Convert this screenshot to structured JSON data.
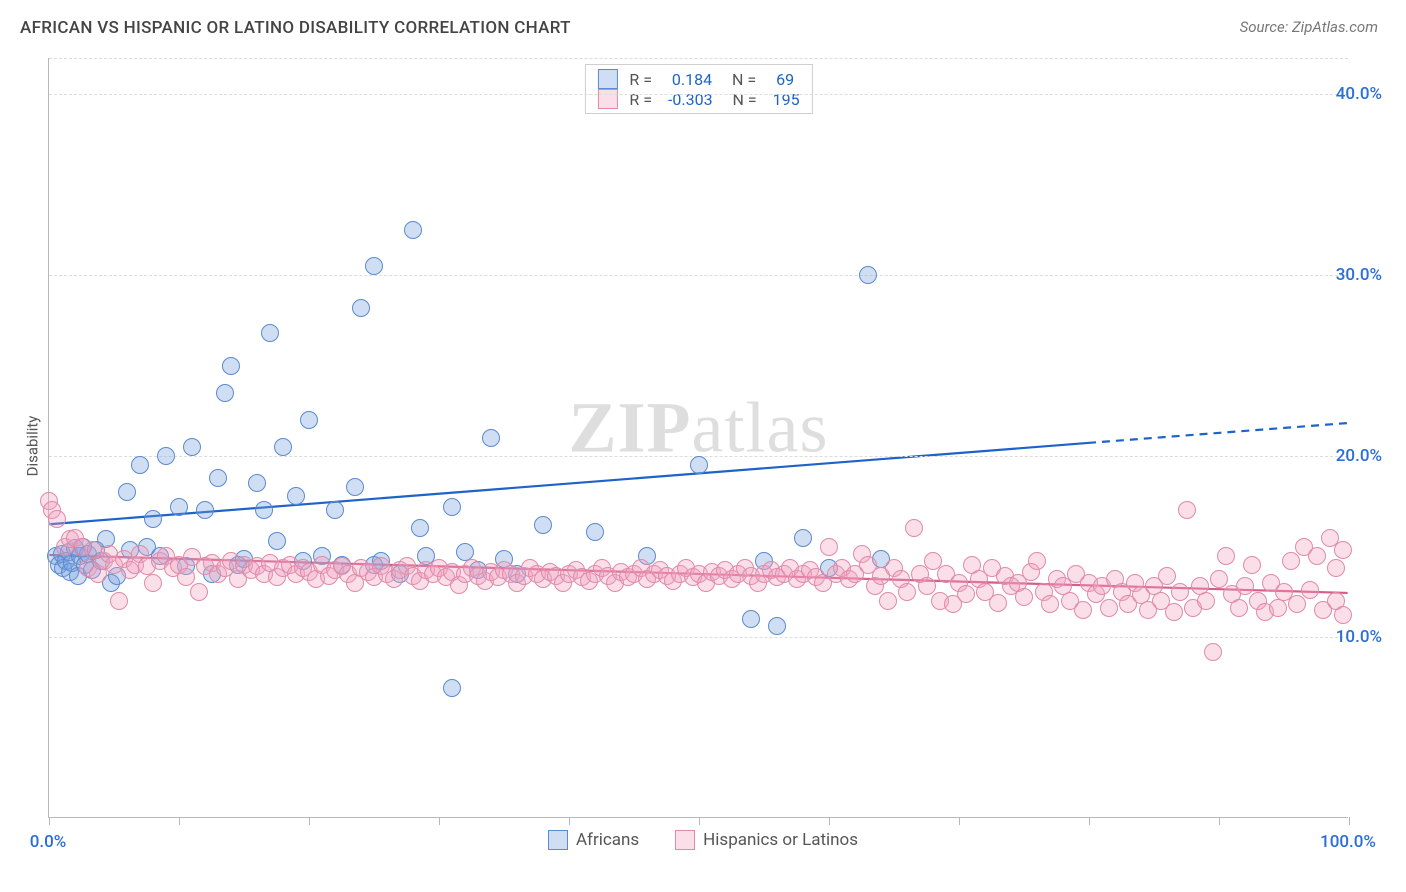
{
  "title": "AFRICAN VS HISPANIC OR LATINO DISABILITY CORRELATION CHART",
  "source": "Source: ZipAtlas.com",
  "ylabel": "Disability",
  "watermark": {
    "bold": "ZIP",
    "rest": "atlas"
  },
  "colors": {
    "title": "#444444",
    "source": "#777777",
    "tick_blue": "#2a6fd6",
    "grid": "#dcdcdc",
    "axis": "#b8b8b8",
    "series_a_fill": "rgba(120,160,220,0.35)",
    "series_a_stroke": "#5a8bd0",
    "series_a_line": "#1e63c8",
    "series_b_fill": "rgba(240,160,190,0.35)",
    "series_b_stroke": "#e08ba8",
    "series_b_line": "#d65c8a",
    "legend_text": "#555555",
    "stat_blue": "#1e63c8"
  },
  "chart": {
    "type": "scatter",
    "xlim": [
      0,
      100
    ],
    "ylim": [
      0,
      42
    ],
    "x_ticks_minor": [
      0,
      10,
      20,
      30,
      40,
      50,
      60,
      70,
      80,
      90,
      100
    ],
    "x_labels": [
      {
        "x": 0,
        "text": "0.0%"
      },
      {
        "x": 100,
        "text": "100.0%"
      }
    ],
    "y_gridlines": [
      10,
      20,
      30,
      40
    ],
    "y_labels": [
      {
        "y": 10,
        "text": "10.0%"
      },
      {
        "y": 20,
        "text": "20.0%"
      },
      {
        "y": 30,
        "text": "30.0%"
      },
      {
        "y": 40,
        "text": "40.0%"
      }
    ],
    "marker_radius": 9,
    "marker_border_width": 1.3,
    "line_width": 2.2
  },
  "legend_top": [
    {
      "swatch_fill": "rgba(120,160,220,0.35)",
      "swatch_stroke": "#5a8bd0",
      "r_label": "R =",
      "r_val": "0.184",
      "n_label": "N =",
      "n_val": "69"
    },
    {
      "swatch_fill": "rgba(240,160,190,0.35)",
      "swatch_stroke": "#e08ba8",
      "r_label": "R =",
      "r_val": "-0.303",
      "n_label": "N =",
      "n_val": "195"
    }
  ],
  "legend_bottom": [
    {
      "swatch_fill": "rgba(120,160,220,0.35)",
      "swatch_stroke": "#5a8bd0",
      "label": "Africans"
    },
    {
      "swatch_fill": "rgba(240,160,190,0.35)",
      "swatch_stroke": "#e08ba8",
      "label": "Hispanics or Latinos"
    }
  ],
  "series": [
    {
      "name": "Africans",
      "fill": "rgba(120,160,220,0.35)",
      "stroke": "#5a8bd0",
      "regression": {
        "x1": 0,
        "y1": 16.2,
        "x2_solid": 80,
        "y2_solid": 20.7,
        "x2": 100,
        "y2": 21.8,
        "color": "#1e63c8",
        "dash_from": 80
      },
      "points": [
        [
          0.5,
          14.5
        ],
        [
          0.8,
          14.0
        ],
        [
          1.0,
          14.6
        ],
        [
          1.1,
          13.8
        ],
        [
          1.3,
          14.2
        ],
        [
          1.5,
          14.7
        ],
        [
          1.6,
          13.6
        ],
        [
          1.8,
          14.1
        ],
        [
          2.0,
          14.9
        ],
        [
          2.2,
          13.4
        ],
        [
          2.4,
          14.5
        ],
        [
          2.6,
          15.0
        ],
        [
          2.8,
          14.0
        ],
        [
          3.0,
          14.6
        ],
        [
          3.3,
          13.7
        ],
        [
          3.6,
          14.8
        ],
        [
          4.0,
          14.2
        ],
        [
          4.4,
          15.4
        ],
        [
          4.8,
          13.0
        ],
        [
          5.2,
          13.4
        ],
        [
          6.0,
          18.0
        ],
        [
          6.2,
          14.8
        ],
        [
          7.0,
          19.5
        ],
        [
          7.5,
          15.0
        ],
        [
          8.0,
          16.5
        ],
        [
          8.5,
          14.5
        ],
        [
          9.0,
          20.0
        ],
        [
          10.0,
          17.2
        ],
        [
          10.5,
          13.9
        ],
        [
          11.0,
          20.5
        ],
        [
          12.0,
          17.0
        ],
        [
          12.5,
          13.5
        ],
        [
          13.0,
          18.8
        ],
        [
          13.5,
          23.5
        ],
        [
          14.0,
          25.0
        ],
        [
          14.5,
          14.0
        ],
        [
          15.0,
          14.3
        ],
        [
          16.0,
          18.5
        ],
        [
          16.5,
          17.0
        ],
        [
          17.0,
          26.8
        ],
        [
          17.5,
          15.3
        ],
        [
          18.0,
          20.5
        ],
        [
          19.0,
          17.8
        ],
        [
          19.5,
          14.2
        ],
        [
          20.0,
          22.0
        ],
        [
          21.0,
          14.5
        ],
        [
          22.0,
          17.0
        ],
        [
          22.5,
          14.0
        ],
        [
          23.5,
          18.3
        ],
        [
          24.0,
          28.2
        ],
        [
          25.0,
          14.0
        ],
        [
          25.0,
          30.5
        ],
        [
          25.5,
          14.2
        ],
        [
          27.0,
          13.5
        ],
        [
          28.0,
          32.5
        ],
        [
          28.5,
          16.0
        ],
        [
          29.0,
          14.5
        ],
        [
          31.0,
          7.2
        ],
        [
          31.0,
          17.2
        ],
        [
          32.0,
          14.7
        ],
        [
          33.0,
          13.7
        ],
        [
          34.0,
          21.0
        ],
        [
          35.0,
          14.3
        ],
        [
          36.0,
          13.5
        ],
        [
          38.0,
          16.2
        ],
        [
          42.0,
          15.8
        ],
        [
          46.0,
          14.5
        ],
        [
          50.0,
          19.5
        ],
        [
          54.0,
          11.0
        ],
        [
          55.0,
          14.2
        ],
        [
          56.0,
          10.6
        ],
        [
          58.0,
          15.5
        ],
        [
          60.0,
          13.8
        ],
        [
          63.0,
          30.0
        ],
        [
          64.0,
          14.3
        ]
      ]
    },
    {
      "name": "Hispanics or Latinos",
      "fill": "rgba(240,160,190,0.35)",
      "stroke": "#e08ba8",
      "regression": {
        "x1": 0,
        "y1": 14.5,
        "x2_solid": 100,
        "y2_solid": 12.4,
        "x2": 100,
        "y2": 12.4,
        "color": "#d65c8a",
        "dash_from": 100
      },
      "points": [
        [
          0.0,
          17.5
        ],
        [
          0.2,
          17.0
        ],
        [
          0.6,
          16.5
        ],
        [
          1.2,
          15.0
        ],
        [
          1.6,
          15.4
        ],
        [
          2.0,
          15.5
        ],
        [
          2.5,
          15.0
        ],
        [
          3.0,
          13.8
        ],
        [
          3.4,
          14.8
        ],
        [
          3.8,
          13.5
        ],
        [
          4.2,
          14.2
        ],
        [
          4.6,
          14.6
        ],
        [
          5.0,
          14.0
        ],
        [
          5.4,
          12.0
        ],
        [
          5.8,
          14.3
        ],
        [
          6.2,
          13.7
        ],
        [
          6.6,
          14.0
        ],
        [
          7.0,
          14.6
        ],
        [
          7.5,
          13.9
        ],
        [
          8.0,
          13.0
        ],
        [
          8.5,
          14.2
        ],
        [
          9.0,
          14.5
        ],
        [
          9.5,
          13.8
        ],
        [
          10.0,
          14.0
        ],
        [
          10.5,
          13.3
        ],
        [
          11.0,
          14.4
        ],
        [
          11.5,
          12.5
        ],
        [
          12.0,
          13.9
        ],
        [
          12.5,
          14.1
        ],
        [
          13.0,
          13.5
        ],
        [
          13.5,
          13.8
        ],
        [
          14.0,
          14.2
        ],
        [
          14.5,
          13.2
        ],
        [
          15.0,
          14.0
        ],
        [
          15.5,
          13.7
        ],
        [
          16.0,
          13.9
        ],
        [
          16.5,
          13.5
        ],
        [
          17.0,
          14.1
        ],
        [
          17.5,
          13.3
        ],
        [
          18.0,
          13.8
        ],
        [
          18.5,
          14.0
        ],
        [
          19.0,
          13.5
        ],
        [
          19.5,
          13.8
        ],
        [
          20.0,
          13.6
        ],
        [
          20.5,
          13.2
        ],
        [
          21.0,
          14.0
        ],
        [
          21.5,
          13.4
        ],
        [
          22.0,
          13.7
        ],
        [
          22.5,
          13.9
        ],
        [
          23.0,
          13.5
        ],
        [
          23.5,
          13.0
        ],
        [
          24.0,
          13.8
        ],
        [
          24.5,
          13.6
        ],
        [
          25.0,
          13.3
        ],
        [
          25.5,
          13.9
        ],
        [
          26.0,
          13.5
        ],
        [
          26.5,
          13.2
        ],
        [
          27.0,
          13.7
        ],
        [
          27.5,
          13.9
        ],
        [
          28.0,
          13.4
        ],
        [
          28.5,
          13.1
        ],
        [
          29.0,
          13.7
        ],
        [
          29.5,
          13.5
        ],
        [
          30.0,
          13.8
        ],
        [
          30.5,
          13.3
        ],
        [
          31.0,
          13.6
        ],
        [
          31.5,
          12.9
        ],
        [
          32.0,
          13.5
        ],
        [
          32.5,
          13.8
        ],
        [
          33.0,
          13.4
        ],
        [
          33.5,
          13.1
        ],
        [
          34.0,
          13.6
        ],
        [
          34.5,
          13.3
        ],
        [
          35.0,
          13.7
        ],
        [
          35.5,
          13.5
        ],
        [
          36.0,
          13.0
        ],
        [
          36.5,
          13.4
        ],
        [
          37.0,
          13.8
        ],
        [
          37.5,
          13.5
        ],
        [
          38.0,
          13.2
        ],
        [
          38.5,
          13.6
        ],
        [
          39.0,
          13.4
        ],
        [
          39.5,
          13.0
        ],
        [
          40.0,
          13.5
        ],
        [
          40.5,
          13.7
        ],
        [
          41.0,
          13.3
        ],
        [
          41.5,
          13.1
        ],
        [
          42.0,
          13.5
        ],
        [
          42.5,
          13.8
        ],
        [
          43.0,
          13.4
        ],
        [
          43.5,
          13.0
        ],
        [
          44.0,
          13.6
        ],
        [
          44.5,
          13.3
        ],
        [
          45.0,
          13.5
        ],
        [
          45.5,
          13.8
        ],
        [
          46.0,
          13.2
        ],
        [
          46.5,
          13.5
        ],
        [
          47.0,
          13.7
        ],
        [
          47.5,
          13.4
        ],
        [
          48.0,
          13.1
        ],
        [
          48.5,
          13.5
        ],
        [
          49.0,
          13.8
        ],
        [
          49.5,
          13.3
        ],
        [
          50.0,
          13.5
        ],
        [
          50.5,
          13.0
        ],
        [
          51.0,
          13.6
        ],
        [
          51.5,
          13.4
        ],
        [
          52.0,
          13.7
        ],
        [
          52.5,
          13.2
        ],
        [
          53.0,
          13.5
        ],
        [
          53.5,
          13.8
        ],
        [
          54.0,
          13.4
        ],
        [
          54.5,
          13.0
        ],
        [
          55.0,
          13.5
        ],
        [
          55.5,
          13.7
        ],
        [
          56.0,
          13.3
        ],
        [
          56.5,
          13.5
        ],
        [
          57.0,
          13.8
        ],
        [
          57.5,
          13.2
        ],
        [
          58.0,
          13.5
        ],
        [
          58.5,
          13.7
        ],
        [
          59.0,
          13.3
        ],
        [
          59.5,
          13.0
        ],
        [
          60.0,
          15.0
        ],
        [
          60.5,
          13.5
        ],
        [
          61.0,
          13.8
        ],
        [
          61.5,
          13.2
        ],
        [
          62.0,
          13.5
        ],
        [
          62.5,
          14.6
        ],
        [
          63.0,
          14.0
        ],
        [
          63.5,
          12.8
        ],
        [
          64.0,
          13.4
        ],
        [
          64.5,
          12.0
        ],
        [
          65.0,
          13.8
        ],
        [
          65.5,
          13.2
        ],
        [
          66.0,
          12.5
        ],
        [
          66.5,
          16.0
        ],
        [
          67.0,
          13.5
        ],
        [
          67.5,
          12.8
        ],
        [
          68.0,
          14.2
        ],
        [
          68.5,
          12.0
        ],
        [
          69.0,
          13.5
        ],
        [
          69.5,
          11.8
        ],
        [
          70.0,
          13.0
        ],
        [
          70.5,
          12.4
        ],
        [
          71.0,
          14.0
        ],
        [
          71.5,
          13.2
        ],
        [
          72.0,
          12.5
        ],
        [
          72.5,
          13.8
        ],
        [
          73.0,
          11.9
        ],
        [
          73.5,
          13.4
        ],
        [
          74.0,
          12.8
        ],
        [
          74.5,
          13.0
        ],
        [
          75.0,
          12.2
        ],
        [
          75.5,
          13.6
        ],
        [
          76.0,
          14.2
        ],
        [
          76.5,
          12.5
        ],
        [
          77.0,
          11.8
        ],
        [
          77.5,
          13.2
        ],
        [
          78.0,
          12.8
        ],
        [
          78.5,
          12.0
        ],
        [
          79.0,
          13.5
        ],
        [
          79.5,
          11.5
        ],
        [
          80.0,
          13.0
        ],
        [
          80.5,
          12.4
        ],
        [
          81.0,
          12.8
        ],
        [
          81.5,
          11.6
        ],
        [
          82.0,
          13.2
        ],
        [
          82.5,
          12.5
        ],
        [
          83.0,
          11.8
        ],
        [
          83.5,
          13.0
        ],
        [
          84.0,
          12.3
        ],
        [
          84.5,
          11.5
        ],
        [
          85.0,
          12.8
        ],
        [
          85.5,
          12.0
        ],
        [
          86.0,
          13.4
        ],
        [
          86.5,
          11.4
        ],
        [
          87.0,
          12.5
        ],
        [
          87.5,
          17.0
        ],
        [
          88.0,
          11.6
        ],
        [
          88.5,
          12.8
        ],
        [
          89.0,
          12.0
        ],
        [
          89.5,
          9.2
        ],
        [
          90.0,
          13.2
        ],
        [
          90.5,
          14.5
        ],
        [
          91.0,
          12.4
        ],
        [
          91.5,
          11.6
        ],
        [
          92.0,
          12.8
        ],
        [
          92.5,
          14.0
        ],
        [
          93.0,
          12.0
        ],
        [
          93.5,
          11.4
        ],
        [
          94.0,
          13.0
        ],
        [
          94.5,
          11.6
        ],
        [
          95.0,
          12.5
        ],
        [
          95.5,
          14.2
        ],
        [
          96.0,
          11.8
        ],
        [
          96.5,
          15.0
        ],
        [
          97.0,
          12.6
        ],
        [
          97.5,
          14.5
        ],
        [
          98.0,
          11.5
        ],
        [
          98.5,
          15.5
        ],
        [
          99.0,
          13.8
        ],
        [
          99.0,
          12.0
        ],
        [
          99.5,
          14.8
        ],
        [
          99.5,
          11.2
        ]
      ]
    }
  ]
}
